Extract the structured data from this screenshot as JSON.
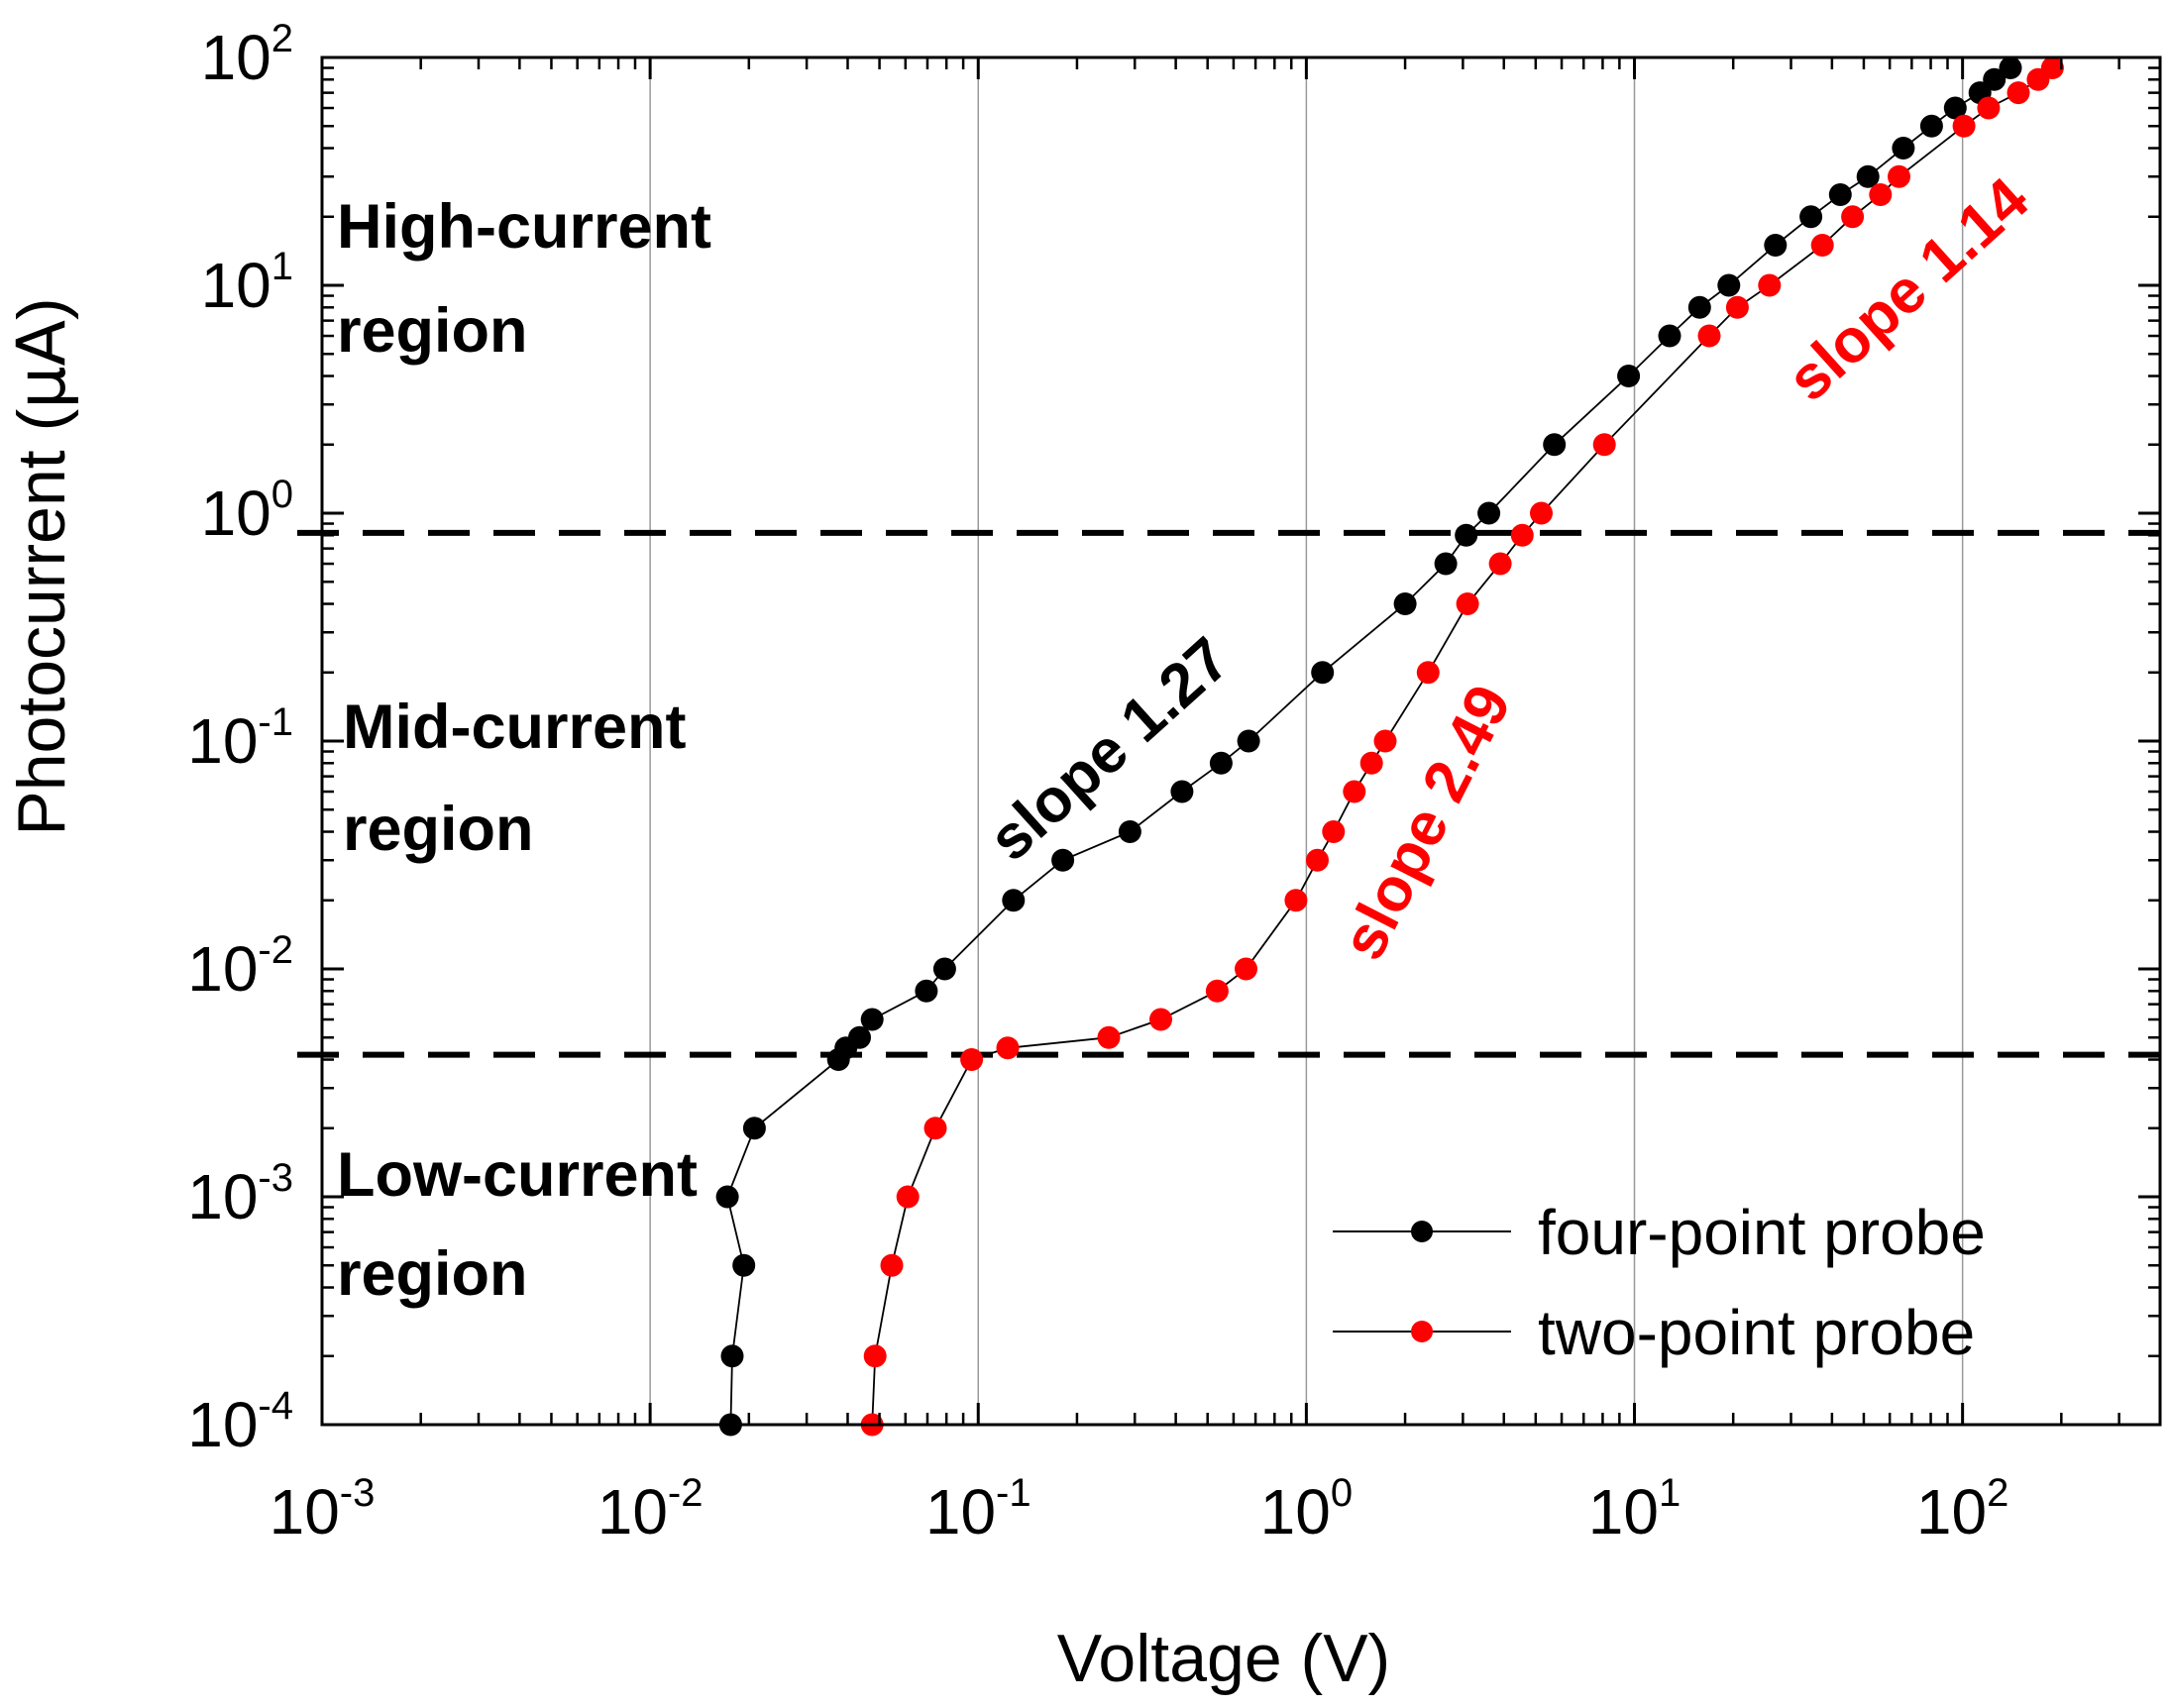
{
  "chart_data": {
    "type": "line",
    "scale": {
      "x": "log",
      "y": "log"
    },
    "xlabel": "Voltage (V)",
    "ylabel_main": "Photocurrent (",
    "ylabel_unit": "μA",
    "ylabel_close": ")",
    "xlim": [
      0.001,
      400
    ],
    "ylim": [
      0.0001,
      100
    ],
    "grid": "vertical lines at x decades",
    "x_ticks": [
      {
        "value": 0.001,
        "base": "10",
        "exp": "-3"
      },
      {
        "value": 0.01,
        "base": "10",
        "exp": "-2"
      },
      {
        "value": 0.1,
        "base": "10",
        "exp": "-1"
      },
      {
        "value": 1,
        "base": "10",
        "exp": "0"
      },
      {
        "value": 10,
        "base": "10",
        "exp": "1"
      },
      {
        "value": 100,
        "base": "10",
        "exp": "2"
      }
    ],
    "y_ticks": [
      {
        "value": 0.0001,
        "base": "10",
        "exp": "-4"
      },
      {
        "value": 0.001,
        "base": "10",
        "exp": "-3"
      },
      {
        "value": 0.01,
        "base": "10",
        "exp": "-2"
      },
      {
        "value": 0.1,
        "base": "10",
        "exp": "-1"
      },
      {
        "value": 1,
        "base": "10",
        "exp": "0"
      },
      {
        "value": 10,
        "base": "10",
        "exp": "1"
      },
      {
        "value": 100,
        "base": "10",
        "exp": "2"
      }
    ],
    "thresholds": [
      {
        "name": "upper-threshold",
        "y": 0.82
      },
      {
        "name": "lower-threshold",
        "y": 0.0042
      }
    ],
    "series": [
      {
        "name": "four-point probe",
        "color": "#000000",
        "points": [
          [
            0.0176,
            0.0001
          ],
          [
            0.0178,
            0.0002
          ],
          [
            0.0193,
            0.0005
          ],
          [
            0.0172,
            0.001
          ],
          [
            0.0208,
            0.002
          ],
          [
            0.0375,
            0.004
          ],
          [
            0.0395,
            0.0045
          ],
          [
            0.0435,
            0.005
          ],
          [
            0.0475,
            0.006
          ],
          [
            0.0695,
            0.008
          ],
          [
            0.079,
            0.01
          ],
          [
            0.128,
            0.02
          ],
          [
            0.181,
            0.03
          ],
          [
            0.29,
            0.04
          ],
          [
            0.418,
            0.06
          ],
          [
            0.55,
            0.08
          ],
          [
            0.667,
            0.1
          ],
          [
            1.12,
            0.2
          ],
          [
            2.0,
            0.4
          ],
          [
            2.66,
            0.6
          ],
          [
            3.07,
            0.8
          ],
          [
            3.6,
            1.0
          ],
          [
            5.7,
            2.0
          ],
          [
            9.6,
            4.0
          ],
          [
            12.8,
            6.0
          ],
          [
            15.8,
            8.0
          ],
          [
            19.4,
            10.0
          ],
          [
            26.9,
            15.0
          ],
          [
            34.5,
            20.0
          ],
          [
            42.4,
            25.0
          ],
          [
            51.5,
            30.0
          ],
          [
            66.0,
            40.0
          ],
          [
            80.5,
            50.0
          ],
          [
            95.0,
            60.0
          ],
          [
            113.0,
            70.0
          ],
          [
            125.0,
            80.0
          ],
          [
            140.0,
            90.0
          ]
        ]
      },
      {
        "name": "two-point probe",
        "color": "#ff0000",
        "points": [
          [
            0.0475,
            0.0001
          ],
          [
            0.0485,
            0.0002
          ],
          [
            0.0545,
            0.0005
          ],
          [
            0.061,
            0.001
          ],
          [
            0.074,
            0.002
          ],
          [
            0.0955,
            0.004
          ],
          [
            0.123,
            0.0045
          ],
          [
            0.25,
            0.005
          ],
          [
            0.36,
            0.006
          ],
          [
            0.535,
            0.008
          ],
          [
            0.655,
            0.01
          ],
          [
            0.93,
            0.02
          ],
          [
            1.08,
            0.03
          ],
          [
            1.21,
            0.04
          ],
          [
            1.4,
            0.06
          ],
          [
            1.58,
            0.08
          ],
          [
            1.74,
            0.1
          ],
          [
            2.35,
            0.2
          ],
          [
            3.1,
            0.4
          ],
          [
            3.9,
            0.6
          ],
          [
            4.55,
            0.8
          ],
          [
            5.2,
            1.0
          ],
          [
            8.1,
            2.0
          ],
          [
            16.9,
            6.0
          ],
          [
            20.6,
            8.0
          ],
          [
            25.8,
            10.0
          ],
          [
            37.4,
            15.0
          ],
          [
            46.2,
            20.0
          ],
          [
            56.2,
            25.0
          ],
          [
            64.0,
            30.0
          ],
          [
            101.0,
            50.0
          ],
          [
            120.0,
            60.0
          ],
          [
            148.0,
            70.0
          ],
          [
            170.0,
            80.0
          ],
          [
            188.0,
            90.0
          ]
        ]
      }
    ],
    "region_labels": [
      {
        "name": "high-current-region",
        "lines": [
          "High-current",
          "region"
        ]
      },
      {
        "name": "mid-current-region",
        "lines": [
          "Mid-current",
          "region"
        ]
      },
      {
        "name": "low-current-region",
        "lines": [
          "Low-current",
          "region"
        ]
      }
    ],
    "slope_annotations": [
      {
        "name": "slope-annotation-black",
        "text": "slope 1.27",
        "color": "#000000"
      },
      {
        "name": "slope-annotation-red-mid",
        "text": "slope 2.49",
        "color": "#ff0000"
      },
      {
        "name": "slope-annotation-red-high",
        "text": "slope 1.14",
        "color": "#ff0000"
      }
    ],
    "legend": {
      "position": "bottom-right",
      "entries": [
        {
          "label": "four-point probe",
          "color": "#000000"
        },
        {
          "label": "two-point probe",
          "color": "#ff0000"
        }
      ]
    }
  }
}
